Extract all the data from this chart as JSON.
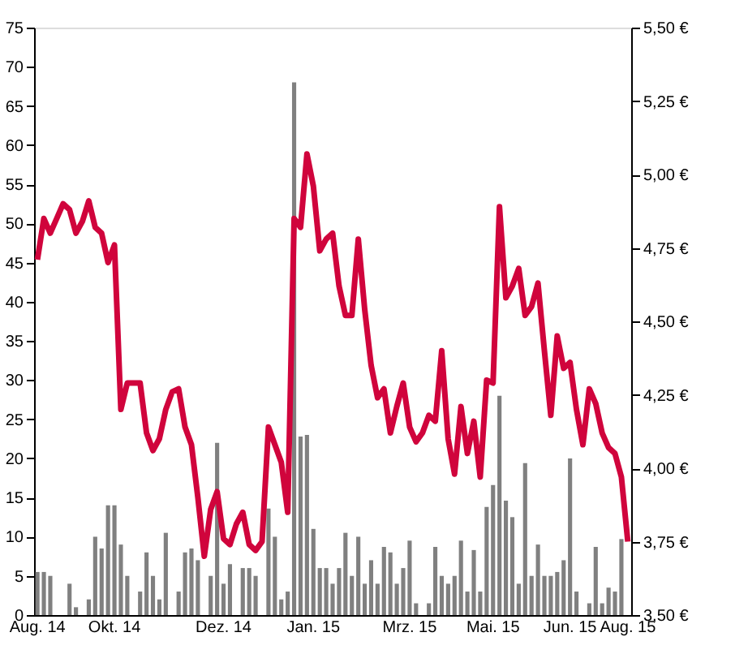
{
  "chart_data": {
    "type": "bar",
    "grid": false,
    "categories": [
      "Aug. 14",
      null,
      null,
      null,
      null,
      null,
      null,
      null,
      null,
      null,
      null,
      null,
      "Okt. 14",
      null,
      null,
      null,
      null,
      null,
      null,
      null,
      null,
      null,
      null,
      null,
      null,
      null,
      null,
      null,
      null,
      "Dez. 14",
      null,
      null,
      null,
      null,
      null,
      null,
      null,
      null,
      null,
      null,
      null,
      null,
      null,
      "Jan. 15",
      null,
      null,
      null,
      null,
      null,
      null,
      null,
      null,
      null,
      null,
      null,
      null,
      null,
      null,
      "Mrz. 15",
      null,
      null,
      null,
      null,
      null,
      null,
      null,
      null,
      null,
      null,
      null,
      null,
      "Mai. 15",
      null,
      null,
      null,
      null,
      null,
      null,
      null,
      null,
      null,
      null,
      null,
      "Jun. 15",
      null,
      null,
      null,
      null,
      null,
      null,
      null,
      null,
      "Aug. 15"
    ],
    "ylim": [
      0,
      75
    ],
    "yticks": [
      0,
      5,
      10,
      15,
      20,
      25,
      30,
      35,
      40,
      45,
      50,
      55,
      60,
      65,
      70,
      75
    ],
    "y2lim": [
      3.5,
      5.5
    ],
    "y2ticks": [
      {
        "value": 3.5,
        "label": "3,50 €"
      },
      {
        "value": 3.75,
        "label": "3,75 €"
      },
      {
        "value": 4.0,
        "label": "4,00 €"
      },
      {
        "value": 4.25,
        "label": "4,25 €"
      },
      {
        "value": 4.5,
        "label": "4,50 €"
      },
      {
        "value": 4.75,
        "label": "4,75 €"
      },
      {
        "value": 5.0,
        "label": "5,00 €"
      },
      {
        "value": 5.25,
        "label": "5,25 €"
      },
      {
        "value": 5.5,
        "label": "5,50 €"
      }
    ],
    "series": [
      {
        "color": "#808080",
        "values": [
          5.5,
          5.5,
          5,
          null,
          null,
          4,
          1,
          null,
          2,
          10,
          8.5,
          14,
          14,
          9,
          5,
          null,
          3,
          8,
          5,
          2,
          10.5,
          null,
          3,
          8,
          8.5,
          7,
          null,
          5,
          22,
          4,
          6.5,
          null,
          6,
          6,
          5,
          null,
          13.6,
          10,
          2,
          3,
          68,
          22.8,
          23,
          11,
          6,
          6,
          4,
          6,
          10.5,
          5,
          10,
          4,
          7,
          4,
          8.7,
          8,
          4,
          6,
          9.5,
          1.5,
          null,
          1.5,
          8.7,
          5,
          4,
          5,
          9.5,
          3,
          8.3,
          3,
          13.8,
          16.6,
          28,
          14.6,
          12.5,
          4,
          19.4,
          5,
          9,
          5,
          5,
          5.5,
          7,
          20,
          3,
          null,
          1.5,
          8.7,
          1.5,
          3.5,
          3,
          9.7,
          null
        ]
      },
      {
        "type": "line",
        "axis": "y2",
        "color": "#d0043c",
        "values": [
          4.71,
          4.85,
          4.8,
          4.85,
          4.9,
          4.88,
          4.8,
          4.84,
          4.91,
          4.82,
          4.8,
          4.7,
          4.76,
          4.2,
          4.29,
          4.29,
          4.29,
          4.12,
          4.06,
          4.1,
          4.2,
          4.26,
          4.27,
          4.14,
          4.08,
          3.9,
          3.7,
          3.86,
          3.92,
          3.76,
          3.74,
          3.81,
          3.85,
          3.74,
          3.72,
          3.75,
          4.14,
          4.08,
          4.02,
          3.85,
          4.85,
          4.82,
          5.07,
          4.96,
          4.74,
          4.78,
          4.8,
          4.62,
          4.52,
          4.52,
          4.78,
          4.54,
          4.35,
          4.24,
          4.27,
          4.12,
          4.21,
          4.29,
          4.14,
          4.09,
          4.12,
          4.18,
          4.16,
          4.4,
          4.1,
          3.98,
          4.21,
          4.05,
          4.16,
          3.97,
          4.3,
          4.29,
          4.89,
          4.58,
          4.62,
          4.68,
          4.52,
          4.55,
          4.63,
          4.4,
          4.18,
          4.45,
          4.34,
          4.36,
          4.2,
          4.08,
          4.27,
          4.22,
          4.12,
          4.07,
          4.05,
          3.97,
          3.75
        ]
      }
    ]
  }
}
